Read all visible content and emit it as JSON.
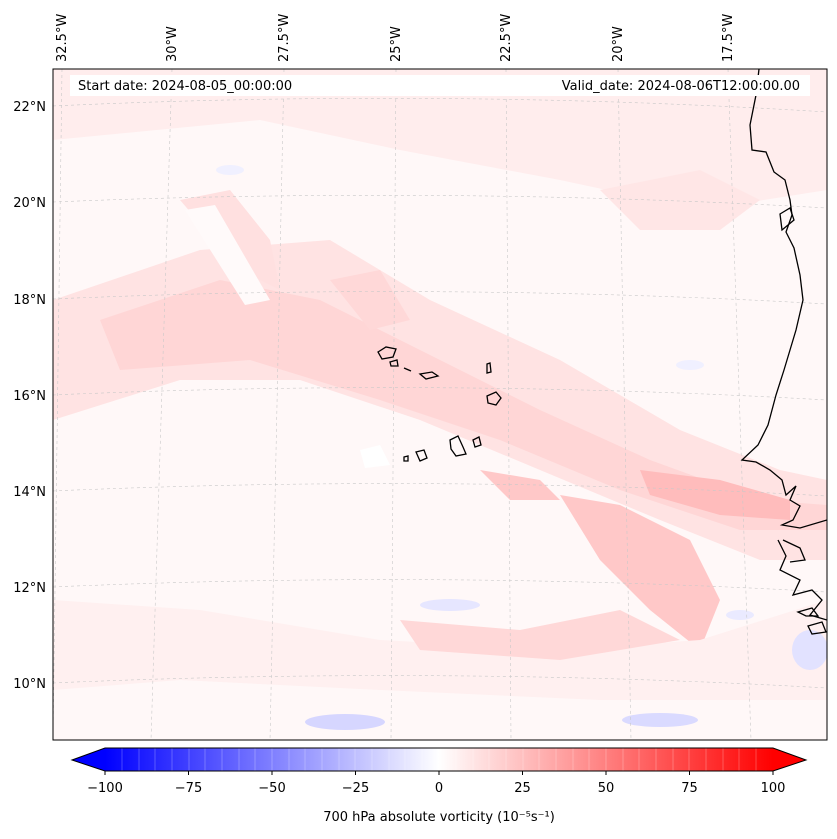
{
  "map": {
    "header": {
      "start_date": "Start date: 2024-08-05_00:00:00",
      "valid_date": "Valid_date: 2024-08-06T12:00:00.00"
    },
    "longitude_labels": [
      "32.5°W",
      "30°W",
      "27.5°W",
      "25°W",
      "22.5°W",
      "20°W",
      "17.5°W"
    ],
    "latitude_labels": [
      "22°N",
      "20°N",
      "18°N",
      "16°N",
      "14°N",
      "12°N",
      "10°N"
    ],
    "field": "700 hPa absolute vorticity",
    "islands": [
      "Santo Antão",
      "São Vicente",
      "São Nicolau",
      "Sal",
      "Boa Vista",
      "Santiago",
      "Fogo",
      "Brava",
      "Maio"
    ],
    "coastline": "West Africa"
  },
  "colorbar": {
    "label": "700 hPa absolute vorticity (10⁻⁵s⁻¹)",
    "ticks": [
      "−100",
      "−75",
      "−50",
      "−25",
      "0",
      "25",
      "50",
      "75",
      "100"
    ],
    "min": -100,
    "max": 100,
    "cmap": "bwr",
    "colors": {
      "negative": "#0000ff",
      "neutral": "#ffffff",
      "positive": "#ff0000"
    },
    "extend": "both"
  }
}
